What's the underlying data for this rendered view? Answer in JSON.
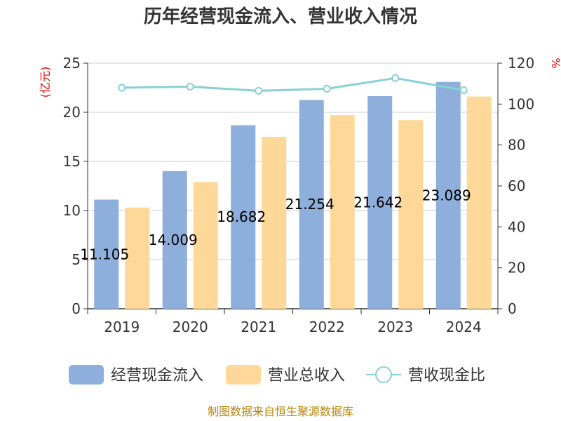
{
  "chart_data": {
    "type": "bar",
    "title": "历年经营现金流入、营业收入情况",
    "categories": [
      "2019",
      "2020",
      "2021",
      "2022",
      "2023",
      "2024"
    ],
    "series": [
      {
        "name": "经营现金流入",
        "kind": "bar",
        "axis": "left",
        "color": "#8eaedb",
        "values": [
          11.105,
          14.009,
          18.682,
          21.254,
          21.642,
          23.089
        ],
        "labels": [
          "11.105",
          "14.009",
          "18.682",
          "21.254",
          "21.642",
          "23.089"
        ]
      },
      {
        "name": "营业总收入",
        "kind": "bar",
        "axis": "left",
        "color": "#fed898",
        "values": [
          10.3,
          12.9,
          17.5,
          19.7,
          19.2,
          21.6
        ]
      },
      {
        "name": "营收现金比",
        "kind": "line",
        "axis": "right",
        "color": "#87d1d6",
        "values": [
          108,
          108.5,
          106.5,
          107.5,
          112.7,
          106.8
        ]
      }
    ],
    "y_left": {
      "label": "(亿元)",
      "range": [
        0,
        25
      ],
      "ticks": [
        "0",
        "5",
        "10",
        "15",
        "20",
        "25"
      ]
    },
    "y_right": {
      "label": "%",
      "range": [
        0,
        120
      ],
      "ticks": [
        "0",
        "20",
        "40",
        "60",
        "80",
        "100",
        "120"
      ]
    },
    "grid": true,
    "legend": "bottom"
  },
  "source": "制图数据来自恒生聚源数据库"
}
